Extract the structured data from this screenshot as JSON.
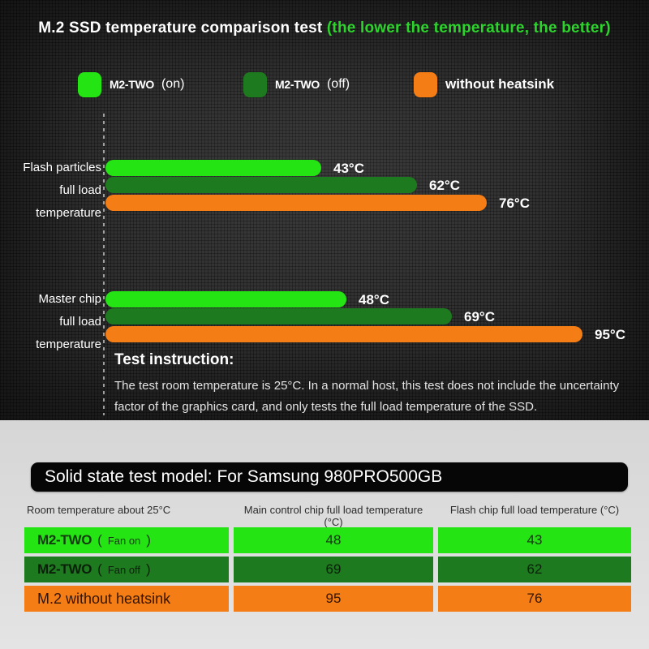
{
  "title": {
    "main": "M.2 SSD temperature comparison test ",
    "note": "(the lower the temperature, the better)"
  },
  "colors": {
    "fan_on": "#25e413",
    "fan_off": "#1e7a1e",
    "no_heatsink": "#f57d15",
    "note_green": "#2cd42c"
  },
  "legend": [
    {
      "label": "M2-TWO",
      "suffix": "(on)",
      "color_key": "fan_on"
    },
    {
      "label": "M2-TWO",
      "suffix": "(off)",
      "color_key": "fan_off"
    },
    {
      "label": "without heatsink",
      "suffix": "",
      "color_key": "no_heatsink"
    }
  ],
  "chart_data": {
    "type": "bar",
    "orientation": "horizontal",
    "unit": "°C",
    "xlim": [
      0,
      100
    ],
    "series": [
      "M2-TWO (on)",
      "M2-TWO (off)",
      "without heatsink"
    ],
    "series_color_keys": [
      "fan_on",
      "fan_off",
      "no_heatsink"
    ],
    "groups": [
      {
        "label_line1": "Flash particles",
        "label_line2": "full load temperature",
        "values": [
          43,
          62,
          76
        ]
      },
      {
        "label_line1": "Master chip",
        "label_line2": "full load temperature",
        "values": [
          48,
          69,
          95
        ]
      }
    ]
  },
  "instruction": {
    "heading": "Test instruction:",
    "body": "The test room temperature is 25°C. In a normal host, this test does not include the uncertainty factor of the graphics card, and only tests the full load temperature of the SSD."
  },
  "table": {
    "banner": "Solid state test model: For Samsung 980PRO500GB",
    "headers": [
      "Room temperature about 25°C",
      "Main control chip full load temperature (°C)",
      "Flash chip full load temperature (°C)"
    ],
    "rows": [
      {
        "label": "M2-TWO",
        "fan": "Fan on",
        "main_chip": "48",
        "flash_chip": "43",
        "color_key": "fan_on"
      },
      {
        "label": "M2-TWO",
        "fan": "Fan off",
        "main_chip": "69",
        "flash_chip": "62",
        "color_key": "fan_off"
      },
      {
        "label": "M.2 without heatsink",
        "fan": "",
        "main_chip": "95",
        "flash_chip": "76",
        "color_key": "no_heatsink"
      }
    ]
  }
}
